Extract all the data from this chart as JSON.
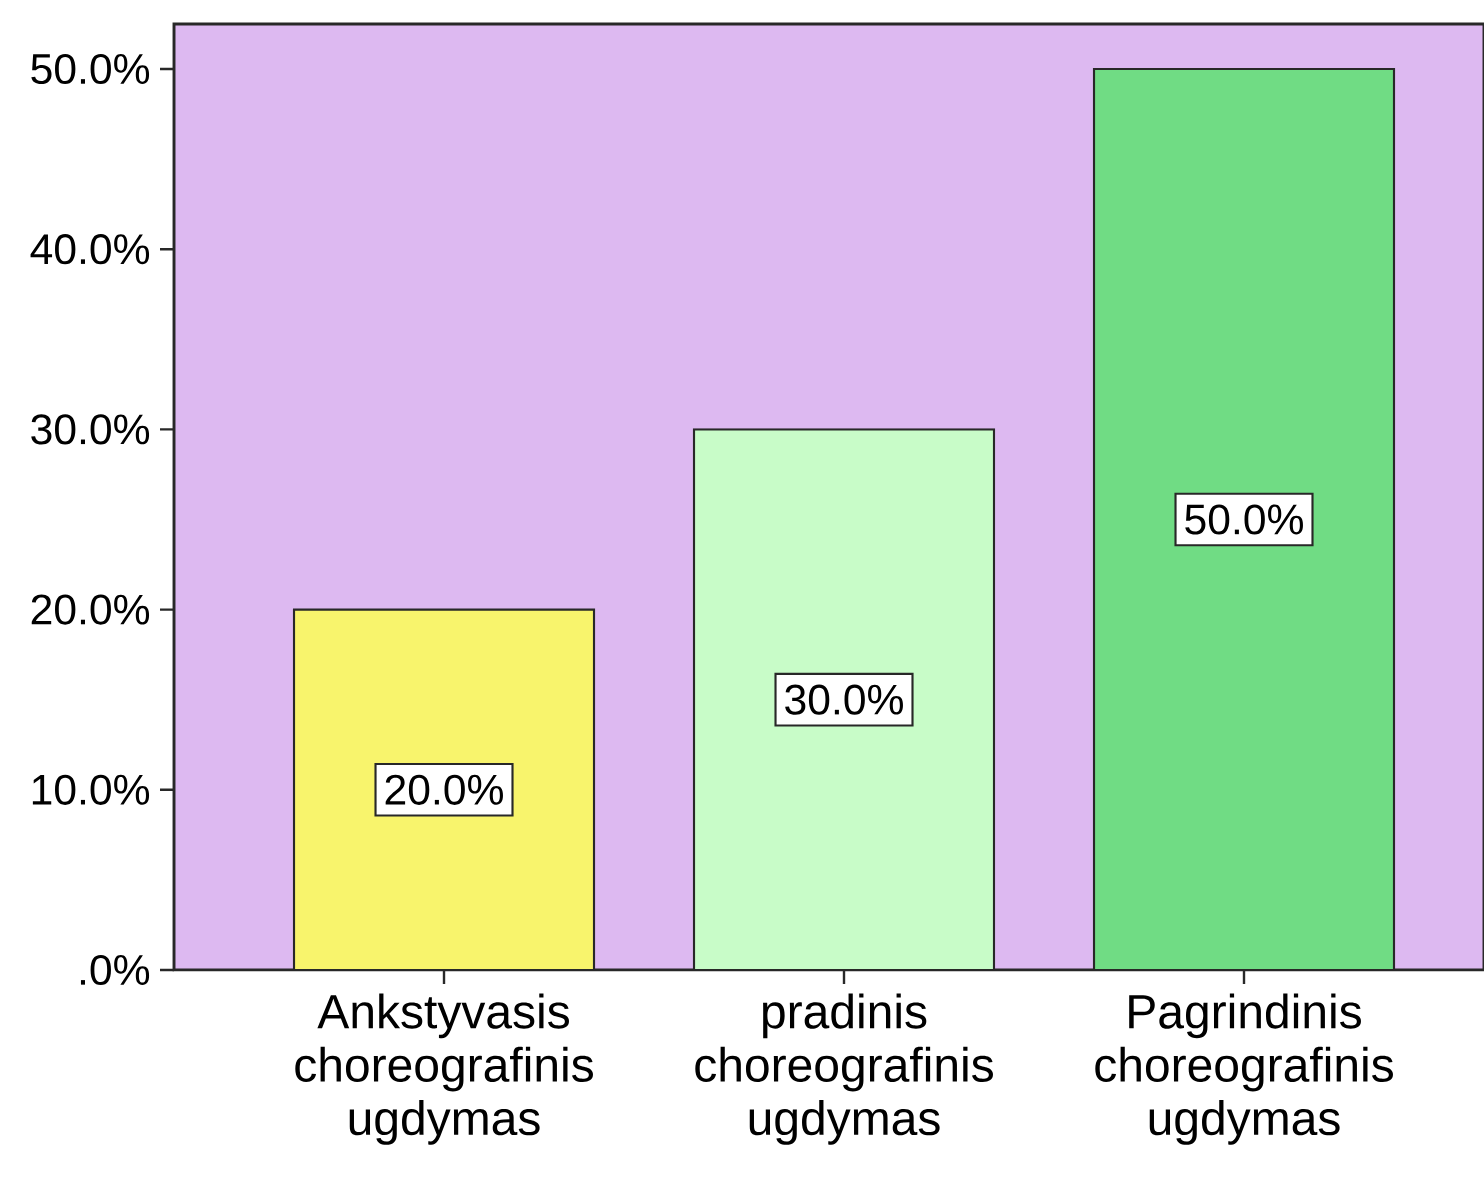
{
  "chart_data": {
    "type": "bar",
    "categories": [
      "Ankstyvasis choreografinis ugdymas",
      "pradinis choreografinis ugdymas",
      "Pagrindinis choreografinis ugdymas"
    ],
    "values": [
      20,
      30,
      50
    ],
    "colors": [
      "#f8f46c",
      "#c8fcc8",
      "#70dc84"
    ],
    "value_labels": [
      "20.0%",
      "30.0%",
      "50.0%"
    ],
    "ylim": [
      0,
      52.5
    ],
    "yticks": [
      {
        "value": 0,
        "label": ".0%"
      },
      {
        "value": 10,
        "label": "10.0%"
      },
      {
        "value": 20,
        "label": "20.0%"
      },
      {
        "value": 30,
        "label": "30.0%"
      },
      {
        "value": 40,
        "label": "40.0%"
      },
      {
        "value": 50,
        "label": "50.0%"
      }
    ]
  }
}
